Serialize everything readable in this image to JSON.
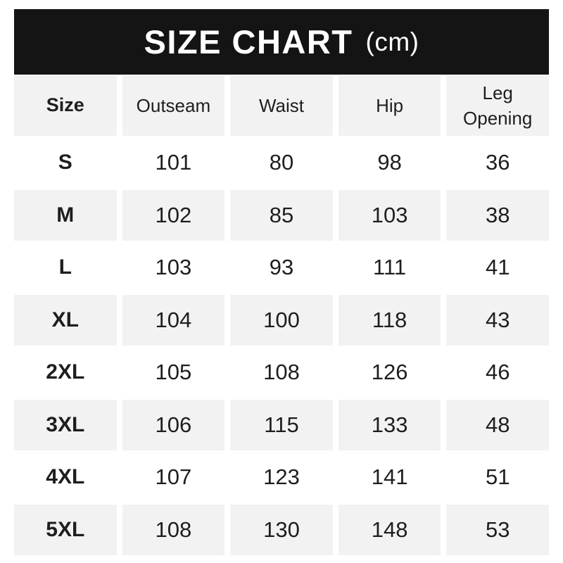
{
  "banner": {
    "title": "SIZE CHART",
    "unit": "(cm)"
  },
  "colors": {
    "banner_bg": "#141414",
    "banner_text": "#ffffff",
    "row_alt_bg": "#f2f2f2",
    "body_text": "#1e1e1e",
    "page_bg": "#ffffff"
  },
  "chart_data": {
    "type": "table",
    "title": "SIZE CHART (cm)",
    "unit": "cm",
    "columns": [
      "Size",
      "Outseam",
      "Waist",
      "Hip",
      "Leg Opening"
    ],
    "rows": [
      [
        "S",
        101,
        80,
        98,
        36
      ],
      [
        "M",
        102,
        85,
        103,
        38
      ],
      [
        "L",
        103,
        93,
        111,
        41
      ],
      [
        "XL",
        104,
        100,
        118,
        43
      ],
      [
        "2XL",
        105,
        108,
        126,
        46
      ],
      [
        "3XL",
        106,
        115,
        133,
        48
      ],
      [
        "4XL",
        107,
        123,
        141,
        51
      ],
      [
        "5XL",
        108,
        130,
        148,
        53
      ]
    ],
    "layout_hints": {
      "alternating_row_shading": [
        "M",
        "XL",
        "3XL",
        "5XL"
      ],
      "header_shaded": true
    }
  }
}
